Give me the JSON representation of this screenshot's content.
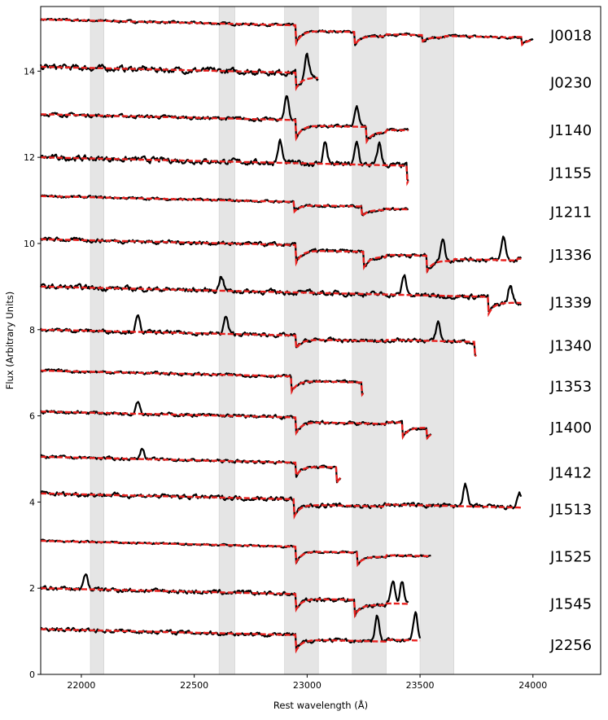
{
  "chart_data": {
    "type": "line",
    "title": "",
    "xlabel": "Rest wavelength (Å)",
    "ylabel": "Flux (Arbitrary Units)",
    "xlim": [
      21820,
      24300
    ],
    "ylim": [
      0,
      15.5
    ],
    "xticks": [
      22000,
      22500,
      23000,
      23500,
      24000
    ],
    "yticks": [
      0,
      2,
      4,
      6,
      8,
      10,
      12,
      14
    ],
    "grid": false,
    "shaded_regions": [
      [
        22040,
        22100
      ],
      [
        22610,
        22680
      ],
      [
        22900,
        23050
      ],
      [
        23200,
        23350
      ],
      [
        23500,
        23650
      ]
    ],
    "line_colors": {
      "observed": "#000000",
      "model": "#e8201e",
      "shade": "#e5e5e5"
    },
    "series": [
      {
        "name": "J0018",
        "offset": 15.2,
        "x_end": 24000,
        "noise": 0.05,
        "features": [
          {
            "x": 22950,
            "depth": 0.35
          },
          {
            "x": 23210,
            "depth": 0.25
          },
          {
            "x": 23510,
            "depth": 0.12
          },
          {
            "x": 23950,
            "depth": 0.15
          }
        ]
      },
      {
        "name": "J0230",
        "offset": 14.1,
        "x_end": 23050,
        "noise": 0.12,
        "features": [
          {
            "x": 22950,
            "depth": 0.3
          },
          {
            "x": 23000,
            "depth": -0.55
          }
        ]
      },
      {
        "name": "J1140",
        "offset": 13.0,
        "x_end": 23450,
        "noise": 0.07,
        "features": [
          {
            "x": 22910,
            "depth": -0.55
          },
          {
            "x": 22950,
            "depth": 0.35
          },
          {
            "x": 23220,
            "depth": -0.45
          },
          {
            "x": 23260,
            "depth": 0.3
          }
        ]
      },
      {
        "name": "J1155",
        "offset": 12.0,
        "x_end": 23450,
        "noise": 0.11,
        "features": [
          {
            "x": 22880,
            "depth": -0.5
          },
          {
            "x": 23080,
            "depth": -0.5
          },
          {
            "x": 23220,
            "depth": -0.5
          },
          {
            "x": 23320,
            "depth": -0.5
          },
          {
            "x": 23440,
            "depth": 0.35
          }
        ]
      },
      {
        "name": "J1211",
        "offset": 11.1,
        "x_end": 23450,
        "noise": 0.05,
        "features": [
          {
            "x": 22940,
            "depth": 0.2
          },
          {
            "x": 23240,
            "depth": 0.2
          }
        ]
      },
      {
        "name": "J1336",
        "offset": 10.1,
        "x_end": 23950,
        "noise": 0.08,
        "features": [
          {
            "x": 22950,
            "depth": 0.35
          },
          {
            "x": 23250,
            "depth": 0.3
          },
          {
            "x": 23530,
            "depth": 0.3
          },
          {
            "x": 23600,
            "depth": -0.55
          },
          {
            "x": 23870,
            "depth": -0.55
          }
        ]
      },
      {
        "name": "J1339",
        "offset": 9.0,
        "x_end": 23950,
        "noise": 0.1,
        "features": [
          {
            "x": 22620,
            "depth": -0.35
          },
          {
            "x": 23430,
            "depth": -0.45
          },
          {
            "x": 23800,
            "depth": 0.35
          },
          {
            "x": 23900,
            "depth": -0.4
          }
        ]
      },
      {
        "name": "J1340",
        "offset": 8.0,
        "x_end": 23750,
        "noise": 0.08,
        "features": [
          {
            "x": 22250,
            "depth": -0.35
          },
          {
            "x": 22640,
            "depth": -0.4
          },
          {
            "x": 22950,
            "depth": 0.25
          },
          {
            "x": 23580,
            "depth": -0.45
          },
          {
            "x": 23740,
            "depth": 0.3
          }
        ]
      },
      {
        "name": "J1353",
        "offset": 7.05,
        "x_end": 23250,
        "noise": 0.06,
        "features": [
          {
            "x": 22930,
            "depth": 0.3
          },
          {
            "x": 23240,
            "depth": 0.25
          }
        ]
      },
      {
        "name": "J1400",
        "offset": 6.1,
        "x_end": 23550,
        "noise": 0.07,
        "features": [
          {
            "x": 22250,
            "depth": -0.3
          },
          {
            "x": 22950,
            "depth": 0.3
          },
          {
            "x": 23420,
            "depth": 0.3
          },
          {
            "x": 23530,
            "depth": 0.2
          }
        ]
      },
      {
        "name": "J1412",
        "offset": 5.05,
        "x_end": 23150,
        "noise": 0.06,
        "features": [
          {
            "x": 22270,
            "depth": -0.25
          },
          {
            "x": 22950,
            "depth": 0.25
          },
          {
            "x": 23130,
            "depth": 0.3
          }
        ]
      },
      {
        "name": "J1513",
        "offset": 4.2,
        "x_end": 23950,
        "noise": 0.09,
        "features": [
          {
            "x": 22940,
            "depth": 0.35
          },
          {
            "x": 23700,
            "depth": -0.55
          },
          {
            "x": 23940,
            "depth": -0.35
          }
        ]
      },
      {
        "name": "J1525",
        "offset": 3.1,
        "x_end": 23550,
        "noise": 0.04,
        "features": [
          {
            "x": 22950,
            "depth": 0.3
          },
          {
            "x": 23220,
            "depth": 0.25
          }
        ]
      },
      {
        "name": "J1545",
        "offset": 2.0,
        "x_end": 23450,
        "noise": 0.09,
        "features": [
          {
            "x": 22020,
            "depth": -0.35
          },
          {
            "x": 22950,
            "depth": 0.3
          },
          {
            "x": 23210,
            "depth": 0.3
          },
          {
            "x": 23380,
            "depth": -0.55
          },
          {
            "x": 23420,
            "depth": -0.5
          }
        ]
      },
      {
        "name": "J2256",
        "offset": 1.05,
        "x_end": 23500,
        "noise": 0.08,
        "features": [
          {
            "x": 22950,
            "depth": 0.3
          },
          {
            "x": 23310,
            "depth": -0.6
          },
          {
            "x": 23480,
            "depth": -0.65
          }
        ]
      }
    ]
  }
}
